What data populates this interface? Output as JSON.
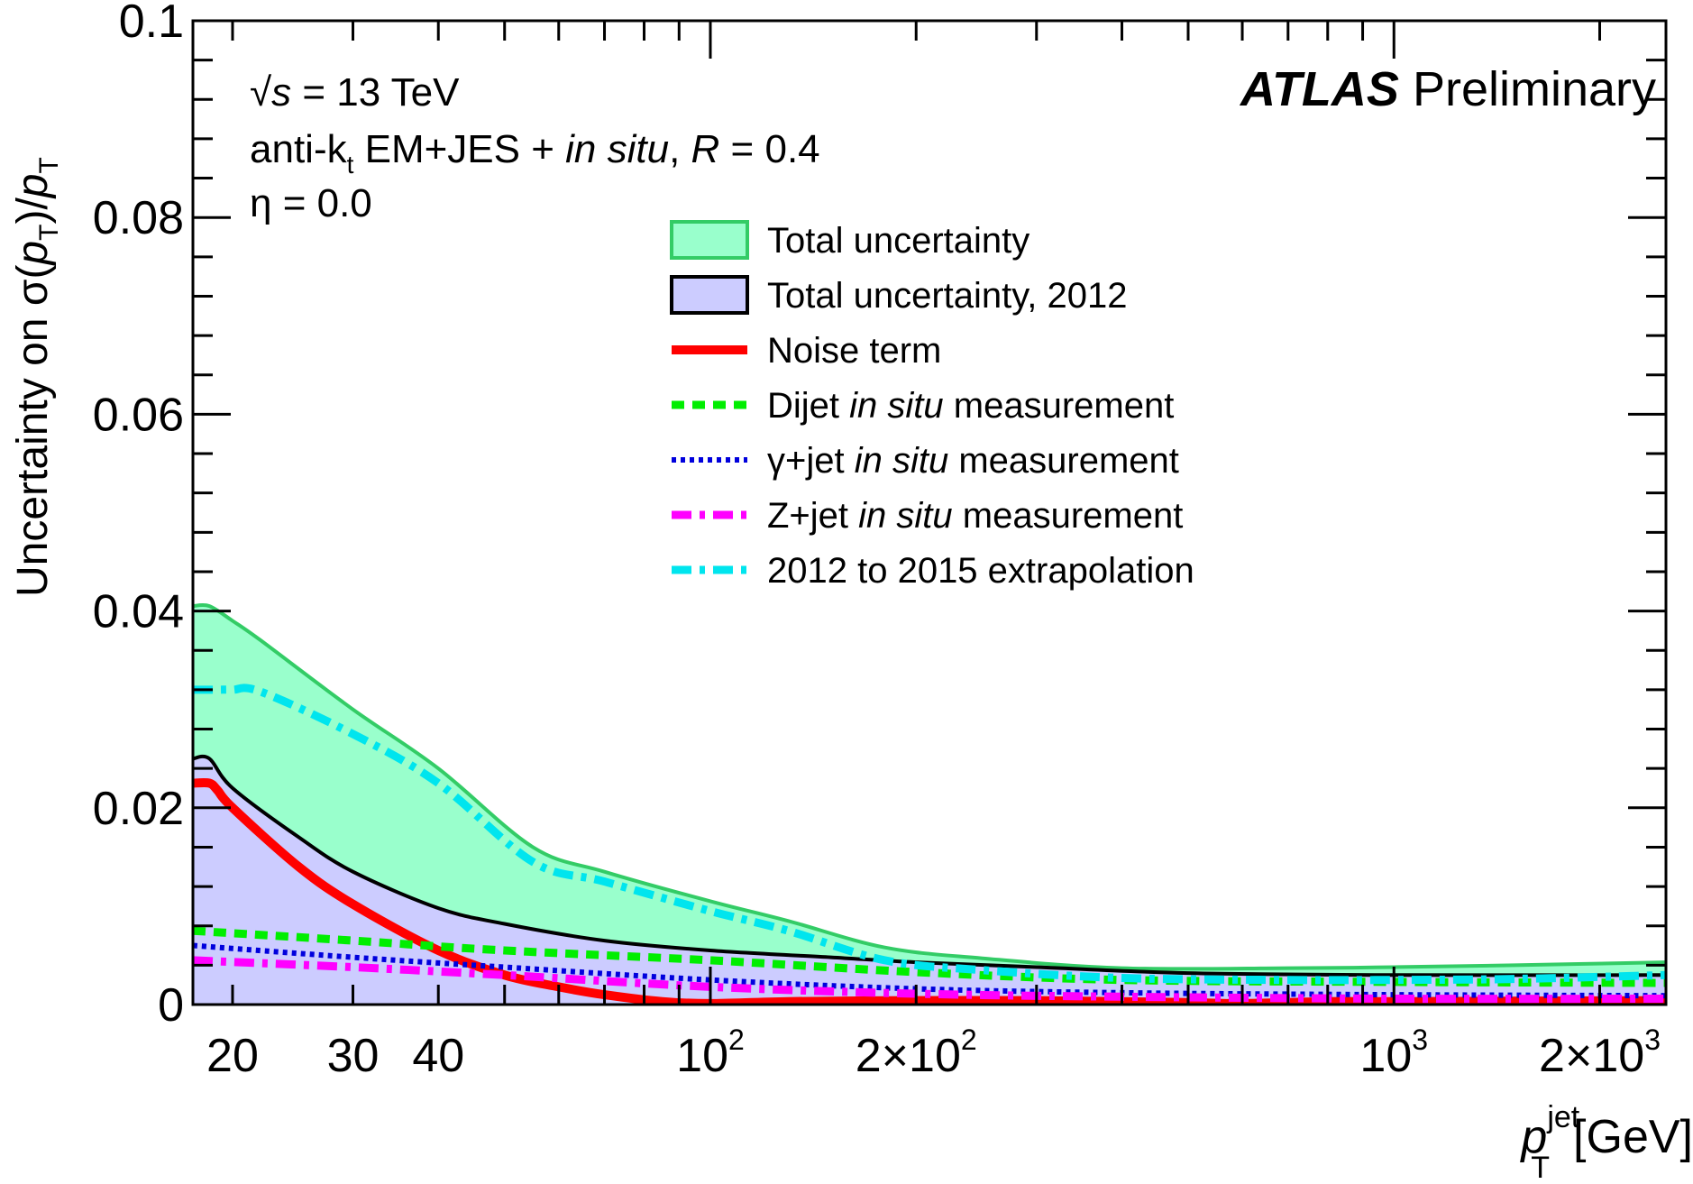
{
  "chart_data": {
    "type": "line",
    "xscale": "log",
    "xlim": [
      17.5,
      2500
    ],
    "ylim": [
      0,
      0.1
    ],
    "grid": false,
    "xlabel": {
      "main": "p",
      "sup": "jet",
      "sub": "T",
      "unit": "[GeV]"
    },
    "ylabel": {
      "pre": "Uncertainty on σ(",
      "p1": "p",
      "sub1": "T",
      "mid": ")/",
      "p2": "p",
      "sub2": "T"
    },
    "x_ticks": [
      {
        "value": 20,
        "label": "20"
      },
      {
        "value": 30,
        "label": "30"
      },
      {
        "value": 40,
        "label": "40"
      },
      {
        "value": 100,
        "label": "10",
        "sup": "2"
      },
      {
        "value": 200,
        "label": "2×10",
        "sup": "2"
      },
      {
        "value": 1000,
        "label": "10",
        "sup": "3"
      },
      {
        "value": 2000,
        "label": "2×10",
        "sup": "3"
      }
    ],
    "y_ticks": [
      {
        "value": 0,
        "label": "0"
      },
      {
        "value": 0.02,
        "label": "0.02"
      },
      {
        "value": 0.04,
        "label": "0.04"
      },
      {
        "value": 0.06,
        "label": "0.06"
      },
      {
        "value": 0.08,
        "label": "0.08"
      },
      {
        "value": 0.1,
        "label": "0.1"
      }
    ],
    "annotations": {
      "energy": {
        "pre": "√",
        "s": "s",
        "rest": " = 13 TeV"
      },
      "algo": {
        "pre": "anti-k",
        "sub": "t",
        "mid": " EM+JES  + ",
        "it": "in situ",
        "sep": ", ",
        "R": "R",
        "rest": " = 0.4"
      },
      "eta": "η = 0.0",
      "atlas": "ATLAS",
      "prelim": " Preliminary"
    },
    "legend_position": "top-center",
    "series": [
      {
        "name": "Total uncertainty",
        "style": "band",
        "fill": "#99ffcc",
        "stroke": "#33cc66",
        "x": [
          17.5,
          18.5,
          20,
          22,
          30,
          40,
          55,
          70,
          100,
          130,
          180,
          250,
          400,
          700,
          1000,
          1500,
          2500
        ],
        "y": [
          0.0405,
          0.0405,
          0.039,
          0.037,
          0.03,
          0.024,
          0.016,
          0.0135,
          0.0105,
          0.0085,
          0.0058,
          0.0047,
          0.0037,
          0.0037,
          0.0038,
          0.004,
          0.0043
        ]
      },
      {
        "name": "Total uncertainty, 2012",
        "style": "band",
        "fill": "#ccccff",
        "stroke": "#000000",
        "x": [
          17.5,
          18.5,
          20,
          25,
          30,
          40,
          50,
          70,
          100,
          150,
          200,
          300,
          500,
          1000,
          2500
        ],
        "y": [
          0.025,
          0.025,
          0.022,
          0.017,
          0.0135,
          0.0098,
          0.0082,
          0.0065,
          0.0055,
          0.0048,
          0.0043,
          0.0038,
          0.0032,
          0.003,
          0.003
        ]
      },
      {
        "name": "Noise term",
        "style": "solid",
        "color": "#ff0000",
        "x": [
          17.5,
          18.5,
          19,
          20,
          25,
          30,
          40,
          50,
          60,
          70,
          85,
          100,
          130,
          200,
          300,
          500,
          600,
          800,
          1000,
          2500
        ],
        "y": [
          0.0225,
          0.0225,
          0.0218,
          0.02,
          0.014,
          0.0102,
          0.0055,
          0.003,
          0.0018,
          0.001,
          0.0003,
          0.0001,
          0.0003,
          0.0004,
          0.0004,
          0.0002,
          0.0001,
          0.0003,
          0.0003,
          0.0004
        ]
      },
      {
        "name": "Dijet in situ measurement",
        "style": "dashed",
        "color": "#00ee00",
        "x": [
          17.5,
          30,
          50,
          100,
          200,
          400,
          1000,
          2500
        ],
        "y": [
          0.0075,
          0.0065,
          0.0055,
          0.0045,
          0.0033,
          0.0025,
          0.0023,
          0.0022
        ]
      },
      {
        "name": "γ+jet in situ measurement",
        "style": "dotted",
        "color": "#0000dd",
        "x": [
          17.5,
          30,
          50,
          100,
          200,
          400,
          1000,
          2500
        ],
        "y": [
          0.006,
          0.0048,
          0.0038,
          0.0025,
          0.0016,
          0.0012,
          0.001,
          0.0009
        ]
      },
      {
        "name": "Z+jet in situ measurement",
        "style": "dashdot",
        "color": "#ff00ff",
        "x": [
          17.5,
          30,
          50,
          100,
          200,
          400,
          1000,
          2500
        ],
        "y": [
          0.0045,
          0.0038,
          0.003,
          0.0018,
          0.0011,
          0.0008,
          0.0006,
          0.0006
        ]
      },
      {
        "name": "2012 to 2015 extrapolation",
        "style": "dashdot",
        "color": "#00e5ee",
        "x": [
          17.5,
          19,
          20,
          22,
          30,
          40,
          55,
          70,
          100,
          130,
          180,
          250,
          400,
          700,
          1000,
          1500,
          2500
        ],
        "y": [
          0.032,
          0.032,
          0.032,
          0.0318,
          0.0275,
          0.0225,
          0.0145,
          0.0125,
          0.0095,
          0.0075,
          0.0045,
          0.0035,
          0.0027,
          0.0025,
          0.0025,
          0.0026,
          0.003
        ]
      }
    ],
    "legend": [
      {
        "label": "Total uncertainty"
      },
      {
        "label": "Total uncertainty, 2012"
      },
      {
        "label": "Noise term"
      },
      {
        "pre": "Dijet ",
        "it": "in situ",
        "post": " measurement"
      },
      {
        "pre": "γ+jet ",
        "it": "in situ",
        "post": " measurement"
      },
      {
        "pre": "Z+jet ",
        "it": "in situ",
        "post": " measurement"
      },
      {
        "label": "2012 to 2015 extrapolation"
      }
    ]
  }
}
